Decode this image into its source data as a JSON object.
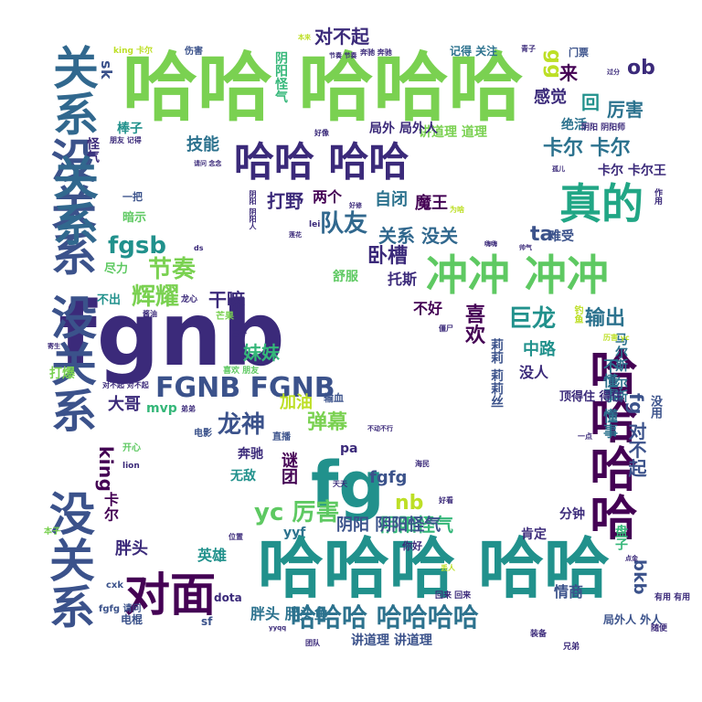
{
  "words": [
    "哈哈 哈哈哈",
    "fgnb",
    "没关系 没关系",
    "关系 关系",
    "冲冲 冲冲",
    "哈哈哈 哈哈",
    "没关系",
    "哈哈哈哈",
    "fg",
    "对面",
    "真的",
    "哈哈 哈哈",
    "FGNB FGNB",
    "哈哈哈 哈哈哈哈",
    "队友",
    "yc 厉害",
    "龙神",
    "巨龙",
    "阴阳怪气",
    "fgsb",
    "节奏",
    "辉耀",
    "弹幕",
    "卧槽",
    "输出",
    "喜欢",
    "关系 没关",
    "打野",
    "对不起",
    "卡尔 卡尔",
    "gg",
    "ob",
    "厉害",
    "感觉",
    "回",
    "来",
    "技能",
    "nb",
    "ta",
    "妹妹",
    "大哥",
    "king",
    "卡尔",
    "fg 对不起",
    "bkb",
    "情商",
    "胖头",
    "英雄",
    "中路",
    "没人",
    "不懂事 懂事",
    "马尔斯 尔斯",
    "莉莉 莉莉丝",
    "不好",
    "托斯",
    "魔王",
    "自闭",
    "两个",
    "干嘛",
    "阴阳 阴阳怪气",
    "fgfg",
    "被动",
    "yyf",
    "胖头 胖头鱼",
    "讲道理 讲道理",
    "讲道理 道理",
    "阴阳怪气",
    "怪气",
    "sk",
    "棒子",
    "绝活",
    "卡尔 卡尔王",
    "难受",
    "分钟",
    "盘子",
    "肯定",
    "顶得住 得住",
    "没用",
    "不出",
    "尽力",
    "暗示",
    "打爆",
    "mvp",
    "无敌",
    "奔驰",
    "谜团",
    "pa",
    "加油",
    "输血",
    "舒服",
    "一把",
    "局外 局外人",
    "局外人 外人",
    "电棍",
    "sf",
    "dota",
    "钓鱼",
    "记得 关注",
    "朋友 记得",
    "奔驰 奔驰",
    "伤害",
    "king 卡尔",
    "门票",
    "开心",
    "lion",
    "电影",
    "直播",
    "弟弟",
    "龙心",
    "芒果",
    "喜欢 朋友",
    "酱油",
    "你好",
    "装备",
    "兄弟",
    "随便",
    "有用 有用",
    "一点",
    "好看",
    "回来 回来",
    "团队",
    "yyqq",
    "cxk",
    "fgfg 请问",
    "本子",
    "ds",
    "lei",
    "天天",
    "不动不行",
    "位置",
    "阴阳 阴阳人",
    "阴阳 阴阳师",
    "对不起 对不起",
    "三个",
    "过分",
    "作用",
    "点金",
    "丢人",
    "青子",
    "本来",
    "节奏 节奏",
    "好像",
    "历害 yc",
    "请问 念念",
    "孤儿",
    "好修",
    "为啥",
    "莲花",
    "海民",
    "僵尸",
    "寄生",
    "嗨嗨",
    "帅气"
  ],
  "palette": {
    "dark_purple": "#440154",
    "indigo": "#3b528b",
    "teal": "#21918c",
    "green": "#5ec962",
    "yellow": "#fde725"
  }
}
